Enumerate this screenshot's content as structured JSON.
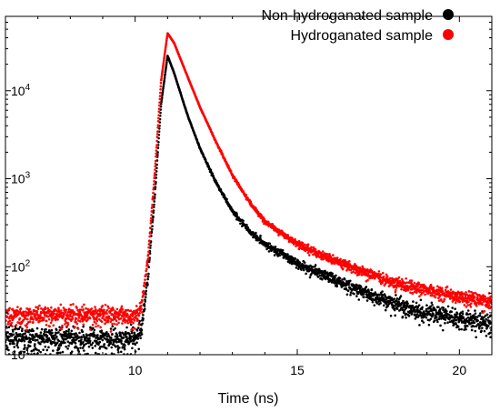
{
  "chart_data": {
    "type": "scatter",
    "title": "",
    "xlabel": "Time (ns)",
    "ylabel": "",
    "xlim": [
      6,
      21
    ],
    "ylim": [
      10,
      70000
    ],
    "yscale": "log",
    "grid": false,
    "legend_position": "top-right",
    "x_ticks": [
      10,
      15,
      20
    ],
    "x_tick_labels": [
      "10",
      "15",
      "20"
    ],
    "y_ticks": [
      10,
      100,
      1000,
      10000
    ],
    "y_tick_labels": [
      {
        "base": "10",
        "exp": "1"
      },
      {
        "base": "10",
        "exp": "2"
      },
      {
        "base": "10",
        "exp": "3"
      },
      {
        "base": "10",
        "exp": "4"
      }
    ],
    "series": [
      {
        "name": "Non-hydroganated sample",
        "color": "#000000",
        "x": [
          6,
          8,
          10,
          10.2,
          10.4,
          10.6,
          10.8,
          11.0,
          11.2,
          11.6,
          12.0,
          12.5,
          13.0,
          13.5,
          14.0,
          15.0,
          16.0,
          17.0,
          18.0,
          19.0,
          20.0,
          21.0
        ],
        "y": [
          15,
          15,
          15,
          20,
          80,
          600,
          7000,
          25000,
          16000,
          5500,
          2200,
          900,
          430,
          260,
          180,
          110,
          75,
          52,
          38,
          30,
          26,
          22
        ]
      },
      {
        "name": "Hydroganated sample",
        "color": "#ff0000",
        "x": [
          6,
          8,
          10,
          10.2,
          10.4,
          10.6,
          10.8,
          11.0,
          11.2,
          11.6,
          12.0,
          12.5,
          13.0,
          13.5,
          14.0,
          15.0,
          16.0,
          17.0,
          18.0,
          19.0,
          20.0,
          21.0
        ],
        "y": [
          28,
          28,
          28,
          35,
          130,
          1100,
          13000,
          45000,
          35000,
          15000,
          6500,
          2600,
          1100,
          560,
          330,
          180,
          125,
          88,
          66,
          54,
          46,
          40
        ]
      }
    ]
  }
}
